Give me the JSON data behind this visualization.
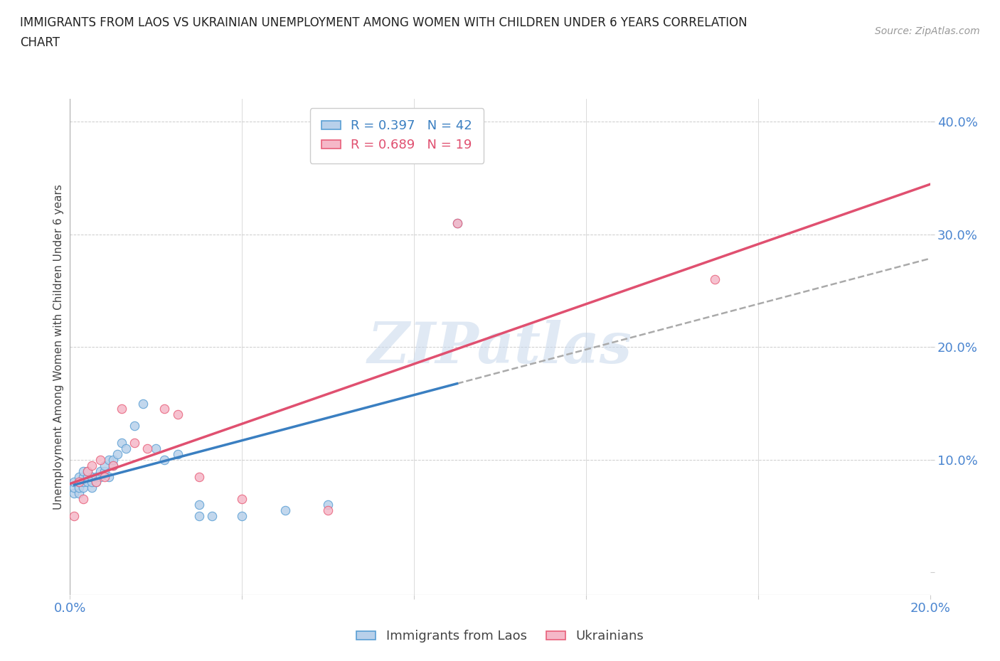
{
  "title_line1": "IMMIGRANTS FROM LAOS VS UKRAINIAN UNEMPLOYMENT AMONG WOMEN WITH CHILDREN UNDER 6 YEARS CORRELATION",
  "title_line2": "CHART",
  "source": "Source: ZipAtlas.com",
  "ylabel": "Unemployment Among Women with Children Under 6 years",
  "xlim": [
    0.0,
    0.2
  ],
  "ylim": [
    -0.02,
    0.42
  ],
  "x_ticks": [
    0.0,
    0.04,
    0.08,
    0.12,
    0.16,
    0.2
  ],
  "y_ticks": [
    0.0,
    0.1,
    0.2,
    0.3,
    0.4
  ],
  "x_tick_labels": [
    "0.0%",
    "",
    "",
    "",
    "",
    "20.0%"
  ],
  "y_tick_labels": [
    "",
    "10.0%",
    "20.0%",
    "30.0%",
    "40.0%"
  ],
  "blue_fill": "#b8d0ea",
  "pink_fill": "#f5b8c8",
  "blue_edge": "#5a9fd4",
  "pink_edge": "#e8607a",
  "blue_line": "#3a7fc1",
  "pink_line": "#e05070",
  "dash_color": "#aaaaaa",
  "R_blue": 0.397,
  "N_blue": 42,
  "R_pink": 0.689,
  "N_pink": 19,
  "watermark": "ZIPatlas",
  "laos_x": [
    0.001,
    0.001,
    0.001,
    0.002,
    0.002,
    0.002,
    0.002,
    0.003,
    0.003,
    0.003,
    0.003,
    0.004,
    0.004,
    0.004,
    0.005,
    0.005,
    0.005,
    0.006,
    0.006,
    0.007,
    0.007,
    0.008,
    0.008,
    0.009,
    0.009,
    0.01,
    0.01,
    0.011,
    0.012,
    0.013,
    0.015,
    0.017,
    0.02,
    0.022,
    0.025,
    0.03,
    0.03,
    0.033,
    0.04,
    0.05,
    0.06,
    0.09
  ],
  "laos_y": [
    0.07,
    0.075,
    0.08,
    0.07,
    0.075,
    0.08,
    0.085,
    0.075,
    0.08,
    0.085,
    0.09,
    0.08,
    0.085,
    0.09,
    0.075,
    0.08,
    0.085,
    0.08,
    0.085,
    0.085,
    0.09,
    0.09,
    0.095,
    0.085,
    0.1,
    0.095,
    0.1,
    0.105,
    0.115,
    0.11,
    0.13,
    0.15,
    0.11,
    0.1,
    0.105,
    0.05,
    0.06,
    0.05,
    0.05,
    0.055,
    0.06,
    0.31
  ],
  "ukr_x": [
    0.001,
    0.002,
    0.003,
    0.004,
    0.005,
    0.006,
    0.007,
    0.008,
    0.01,
    0.012,
    0.015,
    0.018,
    0.022,
    0.025,
    0.03,
    0.04,
    0.06,
    0.09,
    0.15
  ],
  "ukr_y": [
    0.05,
    0.08,
    0.065,
    0.09,
    0.095,
    0.08,
    0.1,
    0.085,
    0.095,
    0.145,
    0.115,
    0.11,
    0.145,
    0.14,
    0.085,
    0.065,
    0.055,
    0.31,
    0.26
  ]
}
